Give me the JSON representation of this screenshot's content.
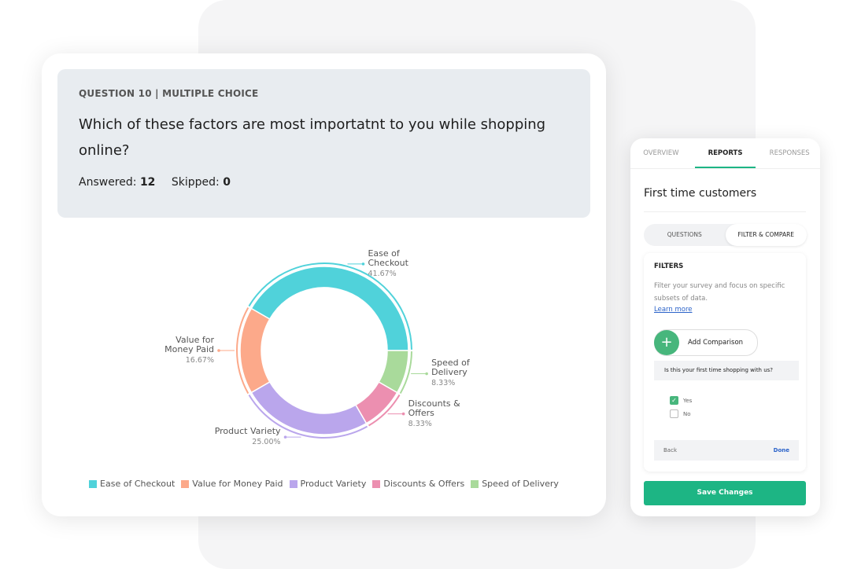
{
  "question": {
    "label": "QUESTION 10 | MULTIPLE CHOICE",
    "text": "Which of these factors are most importatnt to you while shopping online?",
    "answered_label": "Answered:",
    "answered": 12,
    "skipped_label": "Skipped:",
    "skipped": 0
  },
  "chart_data": {
    "type": "pie",
    "donut": true,
    "categories": [
      "Ease of Checkout",
      "Value for Money Paid",
      "Product Variety",
      "Discounts & Offers",
      "Speed of Delivery"
    ],
    "values": [
      41.67,
      16.67,
      25,
      8.33,
      8.33
    ],
    "value_labels": [
      "41.67%",
      "16.67%",
      "25.00%",
      "8.33%",
      "8.33%"
    ],
    "colors": [
      "#50d2da",
      "#fca98a",
      "#baa6ec",
      "#ec8fb0",
      "#a9da9b"
    ],
    "legend": "bottom"
  },
  "panel": {
    "tabs": [
      "OVERVIEW",
      "REPORTS",
      "RESPONSES"
    ],
    "title": "First time customers",
    "segments": [
      "QUESTIONS",
      "FILTER & COMPARE"
    ],
    "filters": {
      "heading": "FILTERS",
      "description": "Filter your survey and focus on specific subsets of data.",
      "link": "Learn more",
      "add": "Add Comparison",
      "question": "Is this your first time shopping with us?",
      "options": [
        "Yes",
        "No"
      ],
      "back": "Back",
      "done": "Done"
    },
    "save": "Save Changes"
  }
}
